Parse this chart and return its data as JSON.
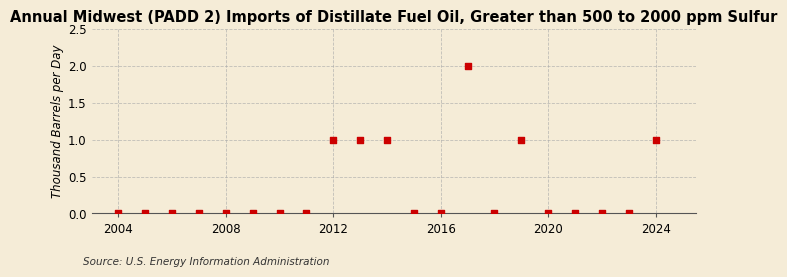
{
  "title": "Annual Midwest (PADD 2) Imports of Distillate Fuel Oil, Greater than 500 to 2000 ppm Sulfur",
  "ylabel": "Thousand Barrels per Day",
  "source": "Source: U.S. Energy Information Administration",
  "background_color": "#f5ecd7",
  "years": [
    2004,
    2005,
    2006,
    2007,
    2008,
    2009,
    2010,
    2011,
    2012,
    2013,
    2014,
    2015,
    2016,
    2017,
    2018,
    2019,
    2020,
    2021,
    2022,
    2023,
    2024
  ],
  "values": [
    0,
    0,
    0,
    0,
    0,
    0,
    0,
    0,
    1,
    1,
    1,
    0,
    0,
    2,
    0,
    1,
    0,
    0,
    0,
    0,
    1
  ],
  "marker_color": "#cc0000",
  "marker_size": 4,
  "xlim": [
    2003.0,
    2025.5
  ],
  "ylim": [
    0,
    2.5
  ],
  "yticks": [
    0.0,
    0.5,
    1.0,
    1.5,
    2.0,
    2.5
  ],
  "xticks": [
    2004,
    2008,
    2012,
    2016,
    2020,
    2024
  ],
  "grid_color": "#aaaaaa",
  "title_fontsize": 10.5,
  "axis_fontsize": 8.5,
  "source_fontsize": 7.5
}
